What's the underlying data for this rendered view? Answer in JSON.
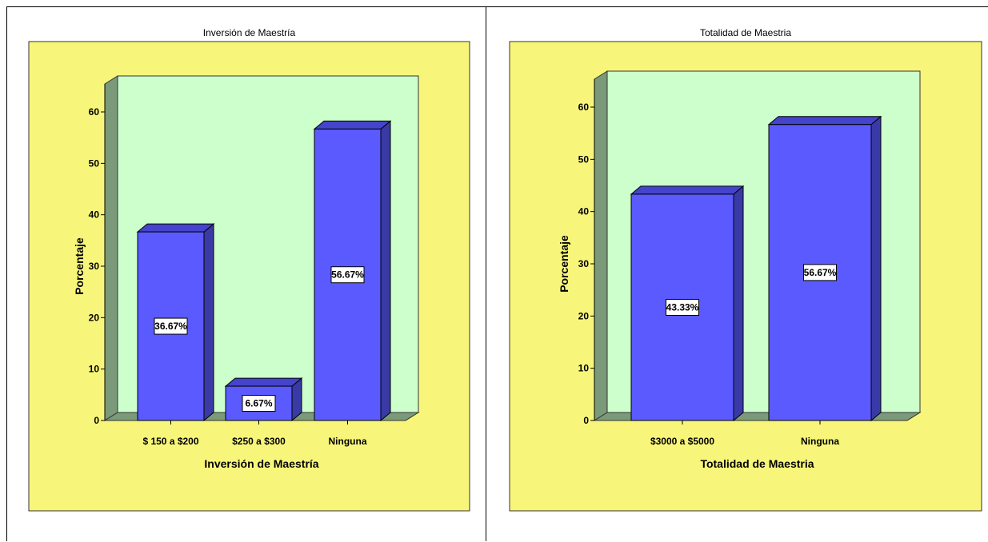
{
  "chart_data": [
    {
      "type": "bar",
      "title": "Inversión de Maestría",
      "xlabel": "Inversión de Maestría",
      "ylabel": "Porcentaje",
      "categories": [
        "$ 150 a $200",
        "$250 a $300",
        "Ninguna"
      ],
      "values": [
        36.67,
        6.67,
        56.67
      ],
      "data_labels": [
        "36.67%",
        "6.67%",
        "56.67%"
      ],
      "ylim": [
        0,
        60
      ],
      "yticks": [
        0,
        10,
        20,
        30,
        40,
        50,
        60
      ],
      "grid": false,
      "colors": {
        "plot_bg": "#f8f67a",
        "wall": "#ccffcc",
        "side_wall": "#7b9a7a",
        "bar_front": "#5a5aff",
        "bar_side": "#3a3aa6",
        "bar_top": "#4444cc"
      }
    },
    {
      "type": "bar",
      "title": "Totalidad de Maestria",
      "xlabel": "Totalidad de Maestria",
      "ylabel": "Porcentaje",
      "categories": [
        "$3000 a $5000",
        "Ninguna"
      ],
      "values": [
        43.33,
        56.67
      ],
      "data_labels": [
        "43.33%",
        "56.67%"
      ],
      "ylim": [
        0,
        60
      ],
      "yticks": [
        0,
        10,
        20,
        30,
        40,
        50,
        60
      ],
      "grid": false,
      "colors": {
        "plot_bg": "#f8f67a",
        "wall": "#ccffcc",
        "side_wall": "#7b9a7a",
        "bar_front": "#5a5aff",
        "bar_side": "#3a3aa6",
        "bar_top": "#4444cc"
      }
    }
  ]
}
